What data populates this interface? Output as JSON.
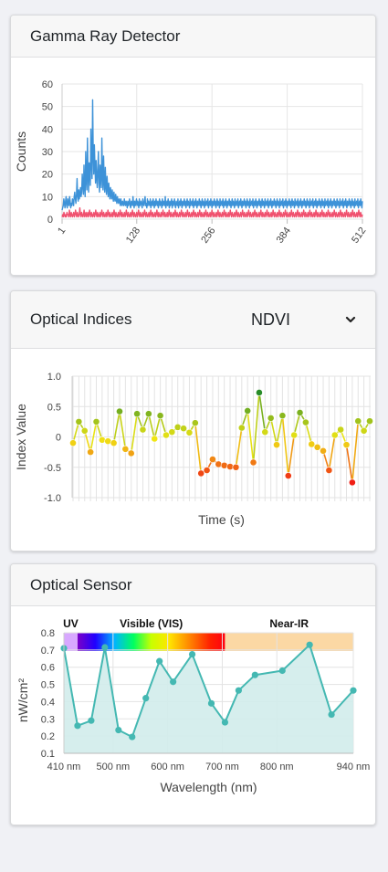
{
  "gamma": {
    "title": "Gamma Ray Detector",
    "chart_data": {
      "type": "line",
      "ylabel": "Counts",
      "xlabel": "",
      "ylim": [
        0,
        60
      ],
      "xlim": [
        1,
        512
      ],
      "yticks": [
        0,
        10,
        20,
        30,
        40,
        50,
        60
      ],
      "xticks": [
        "1",
        "128",
        "256",
        "384",
        "512"
      ],
      "series": [
        {
          "color": "#3d92d8",
          "values": [
            4,
            5,
            6,
            9,
            7,
            5,
            8,
            10,
            6,
            5,
            9,
            7,
            6,
            10,
            8,
            5,
            7,
            6,
            9,
            8,
            6,
            10,
            12,
            9,
            7,
            11,
            18,
            10,
            8,
            13,
            9,
            11,
            14,
            10,
            12,
            20,
            15,
            11,
            24,
            14,
            10,
            30,
            18,
            13,
            36,
            20,
            12,
            25,
            22,
            15,
            40,
            26,
            18,
            53,
            30,
            20,
            33,
            24,
            16,
            26,
            19,
            14,
            22,
            30,
            16,
            12,
            24,
            18,
            14,
            36,
            20,
            13,
            28,
            17,
            12,
            23,
            15,
            11,
            19,
            14,
            10,
            16,
            12,
            9,
            14,
            11,
            9,
            13,
            10,
            8,
            12,
            9,
            8,
            11,
            9,
            7,
            10,
            8,
            7,
            9,
            8,
            6,
            9,
            7,
            6,
            8,
            7,
            6,
            9,
            7,
            6,
            8,
            7,
            5,
            8,
            6,
            7,
            9,
            6,
            5,
            8,
            7,
            6,
            10,
            7,
            5,
            8,
            6,
            7,
            9,
            6,
            8,
            7,
            5,
            9,
            6,
            7,
            8,
            6,
            5,
            9,
            7,
            6,
            8,
            10,
            6,
            7,
            5,
            9,
            6,
            8,
            7,
            6,
            9,
            5,
            7,
            8,
            6,
            9,
            7,
            5,
            8,
            6,
            9,
            7,
            6,
            8,
            5,
            7,
            9,
            6,
            8,
            7,
            5,
            9,
            6,
            8,
            7,
            6,
            10,
            5,
            7,
            8,
            6,
            9,
            7,
            5,
            8,
            6,
            7,
            9,
            5,
            8,
            6,
            7,
            9,
            6,
            5,
            8,
            7,
            6,
            9,
            5,
            7,
            8,
            6,
            9,
            7,
            5,
            8,
            6,
            7,
            9,
            6,
            8,
            5,
            7,
            9,
            6,
            8,
            7,
            5,
            9,
            6,
            7,
            8,
            6,
            9,
            5,
            7,
            8,
            6,
            9,
            7,
            5,
            8,
            6,
            7,
            9,
            6,
            8,
            5,
            7,
            9,
            6,
            8,
            7,
            5,
            9,
            6,
            7,
            8,
            6,
            9,
            5,
            7,
            8,
            6,
            9,
            7,
            5,
            8,
            6,
            7,
            9,
            6,
            8,
            5,
            7,
            9,
            6,
            8,
            7,
            5,
            9,
            6,
            7,
            8,
            6,
            9,
            5,
            7,
            8,
            6,
            9,
            7,
            5,
            8,
            6,
            7,
            9,
            6,
            8,
            5,
            7,
            9,
            6,
            8,
            7,
            5,
            9,
            6,
            7,
            8,
            6,
            9,
            5,
            7,
            8,
            6,
            9,
            7,
            5,
            8,
            6,
            7,
            9,
            6,
            8,
            5,
            7,
            9,
            6,
            8,
            7,
            5,
            9,
            6,
            7,
            8,
            6,
            9,
            5,
            7,
            8,
            6,
            9,
            7,
            5,
            8,
            6,
            7,
            9,
            6,
            8,
            5,
            7,
            9,
            6,
            8,
            7,
            5,
            9,
            6,
            7,
            8,
            6,
            9,
            5,
            7,
            8,
            6,
            9,
            7,
            5,
            8,
            6,
            7,
            9,
            6,
            8,
            5,
            7,
            9,
            6,
            8,
            7,
            5,
            9,
            6,
            7,
            8,
            6,
            9,
            5,
            7,
            8,
            6,
            9,
            7,
            5,
            8,
            6,
            7,
            9,
            6,
            8,
            5,
            7,
            9,
            6,
            8,
            7,
            5,
            9,
            6,
            7,
            8,
            6,
            9,
            5,
            7,
            8,
            6,
            9,
            7,
            5,
            8,
            6,
            7,
            9,
            6,
            8,
            5,
            7,
            9,
            6,
            8,
            7,
            5,
            9,
            6,
            7,
            8,
            6,
            9,
            5,
            7,
            8,
            6,
            9,
            7,
            5,
            8,
            6,
            7,
            9,
            6,
            8,
            5,
            7,
            9,
            6,
            8,
            7,
            5,
            9,
            6,
            7,
            8,
            6,
            9,
            5,
            7,
            8,
            6,
            9,
            7,
            5,
            8,
            6,
            7,
            9,
            6,
            8,
            5,
            7,
            9,
            6,
            8,
            7,
            5,
            9,
            6,
            7,
            8,
            6,
            9,
            5,
            7,
            8,
            6,
            9,
            7,
            5,
            8,
            6,
            7,
            9,
            6,
            8,
            5,
            7,
            9,
            6,
            8,
            7,
            5,
            9,
            6,
            7,
            8,
            6,
            9,
            5,
            7,
            8,
            6,
            9,
            7,
            5,
            8
          ]
        },
        {
          "color": "#f0506e",
          "values": [
            1,
            2,
            1,
            3,
            2,
            1,
            2,
            1,
            3,
            2,
            2,
            1,
            4,
            2,
            1,
            3,
            2,
            1,
            2,
            3,
            1,
            2,
            4,
            2,
            1,
            3,
            2,
            1,
            2,
            5,
            2,
            1,
            3,
            2,
            1,
            2,
            4,
            1,
            2,
            3,
            1,
            2,
            3,
            1,
            2,
            4,
            2,
            1,
            3,
            2,
            1,
            2,
            3,
            1,
            2,
            4,
            2,
            1,
            3,
            2,
            1,
            2,
            3,
            1,
            2,
            4,
            2,
            1,
            3,
            2,
            1,
            2,
            3,
            1,
            2,
            4,
            2,
            1,
            3,
            2,
            1,
            2,
            3,
            1,
            2,
            4,
            2,
            1,
            3,
            2,
            1,
            2,
            3,
            1,
            2,
            4,
            2,
            1,
            3,
            2,
            1,
            2,
            3,
            1,
            2,
            4,
            2,
            1,
            3,
            2,
            1,
            2,
            3,
            1,
            2,
            4,
            2,
            1,
            3,
            2,
            1,
            2,
            3,
            1,
            2,
            4,
            2,
            1,
            3,
            2,
            1,
            2,
            3,
            1,
            2,
            4,
            2,
            1,
            3,
            2,
            1,
            2,
            3,
            1,
            2,
            4,
            2,
            1,
            3,
            2,
            1,
            2,
            3,
            1,
            2,
            4,
            2,
            1,
            3,
            2,
            1,
            2,
            3,
            1,
            2,
            4,
            2,
            1,
            3,
            2,
            1,
            2,
            3,
            1,
            2,
            4,
            2,
            1,
            3,
            2,
            1,
            2,
            3,
            1,
            2,
            4,
            2,
            1,
            3,
            2,
            1,
            2,
            3,
            1,
            2,
            4,
            2,
            1,
            3,
            2,
            1,
            2,
            3,
            1,
            2,
            4,
            2,
            1,
            3,
            2,
            1,
            2,
            3,
            1,
            2,
            4,
            2,
            1,
            3,
            2,
            1,
            2,
            3,
            1,
            2,
            4,
            2,
            1,
            3,
            2,
            1,
            2,
            3,
            1,
            2,
            4,
            2,
            1,
            3,
            2,
            1,
            2,
            3,
            1,
            2,
            4,
            2,
            1,
            3,
            2,
            1,
            2,
            3,
            1,
            2,
            4,
            2,
            1,
            3,
            2,
            1,
            2,
            3,
            1,
            2,
            4,
            2,
            1,
            3,
            2,
            1,
            2,
            3,
            1,
            2,
            4,
            2,
            1,
            3,
            2,
            1,
            2,
            3,
            1,
            2,
            4,
            2,
            1,
            3,
            2,
            1,
            2,
            3,
            1,
            2,
            4,
            2,
            1,
            3,
            2,
            1,
            2,
            3,
            1,
            2,
            4,
            2,
            1,
            3,
            2,
            1,
            2,
            3,
            1,
            2,
            4,
            2,
            1,
            3,
            2,
            1,
            2,
            3,
            1,
            2,
            4,
            2,
            1,
            3,
            2,
            1,
            2,
            3,
            1,
            2,
            4,
            2,
            1,
            3,
            2,
            1,
            2,
            3,
            1,
            2,
            4,
            2,
            1,
            3,
            2,
            1,
            2,
            3,
            1,
            2,
            4,
            2,
            1,
            3,
            2,
            1,
            2,
            3,
            1,
            2,
            4,
            2,
            1,
            3,
            2,
            1,
            2,
            3,
            1,
            2,
            4,
            2,
            1,
            3,
            2,
            1,
            2,
            3,
            1,
            2,
            4,
            2,
            1,
            3,
            2,
            1,
            2,
            3,
            1,
            2,
            4,
            2,
            1,
            3,
            2,
            1,
            2,
            3,
            1,
            2,
            4,
            2,
            1,
            3,
            2,
            1,
            2,
            3,
            1,
            2,
            4,
            2,
            1,
            3,
            2,
            1,
            2,
            3,
            1,
            2,
            4,
            2,
            1,
            3,
            2,
            1,
            2,
            3,
            1,
            2,
            4,
            2,
            1,
            3,
            2,
            1,
            2,
            3,
            1,
            2,
            4,
            2,
            1,
            3,
            2,
            1,
            2,
            3,
            1,
            2,
            4,
            2,
            1,
            3,
            2,
            1,
            2,
            3,
            1,
            2,
            4,
            2,
            1,
            3,
            2,
            1,
            2,
            3,
            1,
            2,
            4,
            2,
            1,
            3,
            2,
            1,
            2,
            3,
            1,
            2,
            4,
            2,
            1,
            3,
            2,
            1,
            2
          ]
        }
      ]
    }
  },
  "optical_indices": {
    "title": "Optical Indices",
    "selected": "NDVI",
    "chevron_icon": "chevron-down-icon",
    "chart_data": {
      "type": "line",
      "xlabel": "Time (s)",
      "ylabel": "Index Value",
      "ylim": [
        -1.0,
        1.0
      ],
      "yticks": [
        "1.0",
        "0.5",
        "0",
        "-0.5",
        "-1.0"
      ],
      "values": [
        -0.1,
        0.25,
        0.1,
        -0.25,
        0.25,
        -0.05,
        -0.07,
        -0.1,
        0.42,
        -0.2,
        -0.27,
        0.38,
        0.12,
        0.38,
        -0.03,
        0.35,
        0.03,
        0.08,
        0.16,
        0.14,
        0.07,
        0.23,
        -0.6,
        -0.55,
        -0.37,
        -0.45,
        -0.47,
        -0.49,
        -0.5,
        0.15,
        0.43,
        -0.42,
        0.73,
        0.08,
        0.31,
        -0.13,
        0.35,
        -0.64,
        0.03,
        0.4,
        0.24,
        -0.12,
        -0.17,
        -0.23,
        -0.55,
        0.03,
        0.12,
        -0.13,
        -0.75,
        0.26,
        0.1,
        0.26
      ]
    }
  },
  "optical_sensor": {
    "title": "Optical Sensor",
    "chart_data": {
      "type": "area",
      "xlabel": "Wavelength (nm)",
      "ylabel": "nW/cm²",
      "ylim": [
        0.1,
        0.8
      ],
      "xlim": [
        410,
        940
      ],
      "yticks": [
        "0.8",
        "0.7",
        "0.6",
        "0.5",
        "0.4",
        "0.3",
        "0.2",
        "0.1"
      ],
      "xticks": [
        {
          "v": 410,
          "label": "410 nm"
        },
        {
          "v": 500,
          "label": "500 nm"
        },
        {
          "v": 600,
          "label": "600 nm"
        },
        {
          "v": 700,
          "label": "700 nm"
        },
        {
          "v": 800,
          "label": "800 nm"
        },
        {
          "v": 940,
          "label": "940 nm"
        }
      ],
      "bands": [
        {
          "label": "UV",
          "from": 410,
          "to": 435,
          "color": "#d8a8ff"
        },
        {
          "label": "Visible (VIS)",
          "from": 435,
          "to": 705,
          "color": "spectrum"
        },
        {
          "label": "Near-IR",
          "from": 705,
          "to": 940,
          "color": "#fbd8a4"
        }
      ],
      "x": [
        410,
        435,
        460,
        485,
        510,
        535,
        560,
        585,
        610,
        645,
        680,
        705,
        730,
        760,
        810,
        860,
        900,
        940
      ],
      "values": [
        0.71,
        0.26,
        0.29,
        0.715,
        0.235,
        0.195,
        0.42,
        0.635,
        0.515,
        0.675,
        0.39,
        0.28,
        0.465,
        0.555,
        0.58,
        0.73,
        0.325,
        0.465
      ],
      "line_color": "#44b8b2",
      "fill_color": "#d2eceb"
    }
  }
}
